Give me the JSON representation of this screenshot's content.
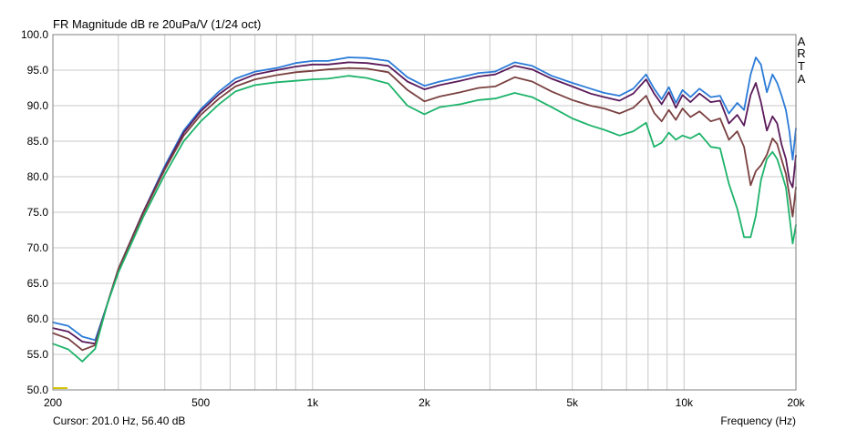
{
  "app": {
    "brand_letters": [
      "A",
      "R",
      "T",
      "A"
    ]
  },
  "status": {
    "cursor_text": "Cursor: 201.0 Hz, 56.40 dB",
    "xlabel": "Frequency (Hz)"
  },
  "colors": {
    "grid": "#c8c8c8",
    "axis": "#808080",
    "cursor_marker": "#d4c400"
  },
  "chart_data": {
    "type": "line",
    "title": "FR Magnitude dB re 20uPa/V (1/24 oct)",
    "xlabel": "Frequency (Hz)",
    "ylabel": "",
    "xscale": "log",
    "xlim": [
      200,
      20000
    ],
    "ylim": [
      50,
      100
    ],
    "grid": true,
    "x_tick_values": [
      200,
      500,
      1000,
      2000,
      5000,
      10000,
      20000
    ],
    "x_tick_labels": [
      "200",
      "500",
      "1k",
      "2k",
      "5k",
      "10k",
      "20k"
    ],
    "y_tick_values": [
      50,
      55,
      60,
      65,
      70,
      75,
      80,
      85,
      90,
      95,
      100
    ],
    "y_tick_labels": [
      "50.0",
      "55.0",
      "60.0",
      "65.0",
      "70.0",
      "75.0",
      "80.0",
      "85.0",
      "90.0",
      "95.0",
      "100.0"
    ],
    "series": [
      {
        "color": "#2b7bd8",
        "points": [
          [
            200,
            59.5
          ],
          [
            220,
            59
          ],
          [
            240,
            57.5
          ],
          [
            260,
            57
          ],
          [
            280,
            62
          ],
          [
            300,
            67
          ],
          [
            350,
            75
          ],
          [
            400,
            81.5
          ],
          [
            450,
            86.5
          ],
          [
            500,
            89.5
          ],
          [
            560,
            92
          ],
          [
            620,
            93.8
          ],
          [
            700,
            94.8
          ],
          [
            800,
            95.3
          ],
          [
            900,
            96
          ],
          [
            1000,
            96.3
          ],
          [
            1100,
            96.3
          ],
          [
            1250,
            96.8
          ],
          [
            1400,
            96.7
          ],
          [
            1600,
            96.3
          ],
          [
            1800,
            94
          ],
          [
            2000,
            92.8
          ],
          [
            2200,
            93.4
          ],
          [
            2500,
            94
          ],
          [
            2800,
            94.6
          ],
          [
            3100,
            94.8
          ],
          [
            3500,
            96.1
          ],
          [
            3900,
            95.6
          ],
          [
            4400,
            94.2
          ],
          [
            5000,
            93.2
          ],
          [
            5600,
            92.4
          ],
          [
            6100,
            91.8
          ],
          [
            6700,
            91.4
          ],
          [
            7300,
            92.4
          ],
          [
            7900,
            94.4
          ],
          [
            8300,
            92.4
          ],
          [
            8700,
            90.9
          ],
          [
            9100,
            92.6
          ],
          [
            9500,
            90.4
          ],
          [
            9900,
            92.2
          ],
          [
            10400,
            91.2
          ],
          [
            11000,
            92.4
          ],
          [
            11800,
            91.2
          ],
          [
            12500,
            91.4
          ],
          [
            13200,
            88.9
          ],
          [
            13900,
            90.4
          ],
          [
            14500,
            89.4
          ],
          [
            15100,
            94.4
          ],
          [
            15600,
            96.8
          ],
          [
            16100,
            95.8
          ],
          [
            16700,
            91.9
          ],
          [
            17300,
            94.4
          ],
          [
            17800,
            93.2
          ],
          [
            18300,
            91.4
          ],
          [
            18800,
            89.4
          ],
          [
            19200,
            86.4
          ],
          [
            19600,
            82.4
          ],
          [
            20000,
            86.8
          ]
        ]
      },
      {
        "color": "#5a1a5a",
        "points": [
          [
            200,
            58.7
          ],
          [
            220,
            58.2
          ],
          [
            240,
            56.8
          ],
          [
            260,
            56.5
          ],
          [
            280,
            62
          ],
          [
            300,
            67
          ],
          [
            350,
            75
          ],
          [
            400,
            81.2
          ],
          [
            450,
            86.2
          ],
          [
            500,
            89.2
          ],
          [
            560,
            91.6
          ],
          [
            620,
            93.3
          ],
          [
            700,
            94.4
          ],
          [
            800,
            95
          ],
          [
            900,
            95.5
          ],
          [
            1000,
            95.8
          ],
          [
            1100,
            95.8
          ],
          [
            1250,
            96.1
          ],
          [
            1400,
            96
          ],
          [
            1600,
            95.6
          ],
          [
            1800,
            93.4
          ],
          [
            2000,
            92.3
          ],
          [
            2200,
            92.9
          ],
          [
            2500,
            93.5
          ],
          [
            2800,
            94.1
          ],
          [
            3100,
            94.4
          ],
          [
            3500,
            95.6
          ],
          [
            3900,
            95.1
          ],
          [
            4400,
            93.8
          ],
          [
            5000,
            92.7
          ],
          [
            5600,
            91.7
          ],
          [
            6100,
            91.2
          ],
          [
            6700,
            90.7
          ],
          [
            7300,
            91.7
          ],
          [
            7900,
            93.7
          ],
          [
            8300,
            91.7
          ],
          [
            8700,
            90.2
          ],
          [
            9100,
            91.9
          ],
          [
            9500,
            89.7
          ],
          [
            9900,
            91.5
          ],
          [
            10400,
            90.5
          ],
          [
            11000,
            91.7
          ],
          [
            11800,
            90.5
          ],
          [
            12500,
            90.7
          ],
          [
            13200,
            87.5
          ],
          [
            13900,
            88.7
          ],
          [
            14500,
            87.2
          ],
          [
            15100,
            91.5
          ],
          [
            15600,
            93.2
          ],
          [
            16100,
            90.5
          ],
          [
            16700,
            86.5
          ],
          [
            17300,
            88.5
          ],
          [
            17800,
            87.5
          ],
          [
            18300,
            84.5
          ],
          [
            18800,
            82.5
          ],
          [
            19200,
            79.5
          ],
          [
            19600,
            78.5
          ],
          [
            20000,
            83
          ]
        ]
      },
      {
        "color": "#7a4040",
        "points": [
          [
            200,
            58
          ],
          [
            220,
            57.2
          ],
          [
            240,
            55.6
          ],
          [
            260,
            56.3
          ],
          [
            280,
            62
          ],
          [
            300,
            67
          ],
          [
            350,
            74.8
          ],
          [
            400,
            81
          ],
          [
            450,
            85.8
          ],
          [
            500,
            88.7
          ],
          [
            560,
            91
          ],
          [
            620,
            92.7
          ],
          [
            700,
            93.7
          ],
          [
            800,
            94.3
          ],
          [
            900,
            94.7
          ],
          [
            1000,
            94.9
          ],
          [
            1100,
            95.1
          ],
          [
            1250,
            95.3
          ],
          [
            1400,
            95.2
          ],
          [
            1600,
            94.7
          ],
          [
            1800,
            92.2
          ],
          [
            2000,
            90.6
          ],
          [
            2200,
            91.3
          ],
          [
            2500,
            91.9
          ],
          [
            2800,
            92.5
          ],
          [
            3100,
            92.7
          ],
          [
            3500,
            94
          ],
          [
            3900,
            93.4
          ],
          [
            4400,
            92
          ],
          [
            5000,
            90.8
          ],
          [
            5600,
            90
          ],
          [
            6100,
            89.6
          ],
          [
            6700,
            88.9
          ],
          [
            7300,
            89.7
          ],
          [
            7900,
            91.4
          ],
          [
            8300,
            89
          ],
          [
            8700,
            87.8
          ],
          [
            9100,
            89.4
          ],
          [
            9500,
            88
          ],
          [
            9900,
            89.6
          ],
          [
            10400,
            88.4
          ],
          [
            11000,
            89.2
          ],
          [
            11800,
            87.8
          ],
          [
            12500,
            88.2
          ],
          [
            13200,
            85.2
          ],
          [
            13900,
            86.4
          ],
          [
            14500,
            84.2
          ],
          [
            15100,
            78.8
          ],
          [
            15600,
            80.8
          ],
          [
            16100,
            81.6
          ],
          [
            16700,
            83.1
          ],
          [
            17300,
            85.4
          ],
          [
            17800,
            84.6
          ],
          [
            18300,
            82.4
          ],
          [
            18800,
            80.4
          ],
          [
            19200,
            77.4
          ],
          [
            19600,
            74.4
          ],
          [
            20000,
            78.5
          ]
        ]
      },
      {
        "color": "#1db36a",
        "points": [
          [
            200,
            56.5
          ],
          [
            220,
            55.7
          ],
          [
            240,
            54
          ],
          [
            260,
            55.8
          ],
          [
            280,
            62
          ],
          [
            300,
            66.5
          ],
          [
            350,
            74.3
          ],
          [
            400,
            80.3
          ],
          [
            450,
            85
          ],
          [
            500,
            87.8
          ],
          [
            560,
            90.2
          ],
          [
            620,
            92
          ],
          [
            700,
            92.9
          ],
          [
            800,
            93.3
          ],
          [
            900,
            93.5
          ],
          [
            1000,
            93.7
          ],
          [
            1100,
            93.8
          ],
          [
            1250,
            94.2
          ],
          [
            1400,
            93.9
          ],
          [
            1600,
            93.1
          ],
          [
            1800,
            90
          ],
          [
            2000,
            88.8
          ],
          [
            2200,
            89.8
          ],
          [
            2500,
            90.2
          ],
          [
            2800,
            90.8
          ],
          [
            3100,
            91
          ],
          [
            3500,
            91.8
          ],
          [
            3900,
            91.2
          ],
          [
            4400,
            89.8
          ],
          [
            5000,
            88.2
          ],
          [
            5600,
            87.2
          ],
          [
            6100,
            86.6
          ],
          [
            6700,
            85.8
          ],
          [
            7300,
            86.4
          ],
          [
            7900,
            87.6
          ],
          [
            8300,
            84.2
          ],
          [
            8700,
            84.8
          ],
          [
            9100,
            86.2
          ],
          [
            9500,
            85.2
          ],
          [
            9900,
            85.8
          ],
          [
            10400,
            85.4
          ],
          [
            11000,
            86.1
          ],
          [
            11800,
            84.2
          ],
          [
            12500,
            84
          ],
          [
            13200,
            79
          ],
          [
            13900,
            75.5
          ],
          [
            14500,
            71.5
          ],
          [
            15100,
            71.5
          ],
          [
            15600,
            74.5
          ],
          [
            16100,
            79.5
          ],
          [
            16700,
            82.5
          ],
          [
            17300,
            83.5
          ],
          [
            17800,
            82.5
          ],
          [
            18300,
            80.5
          ],
          [
            18800,
            78.5
          ],
          [
            19200,
            74.5
          ],
          [
            19600,
            70.6
          ],
          [
            20000,
            73.2
          ]
        ]
      }
    ]
  }
}
